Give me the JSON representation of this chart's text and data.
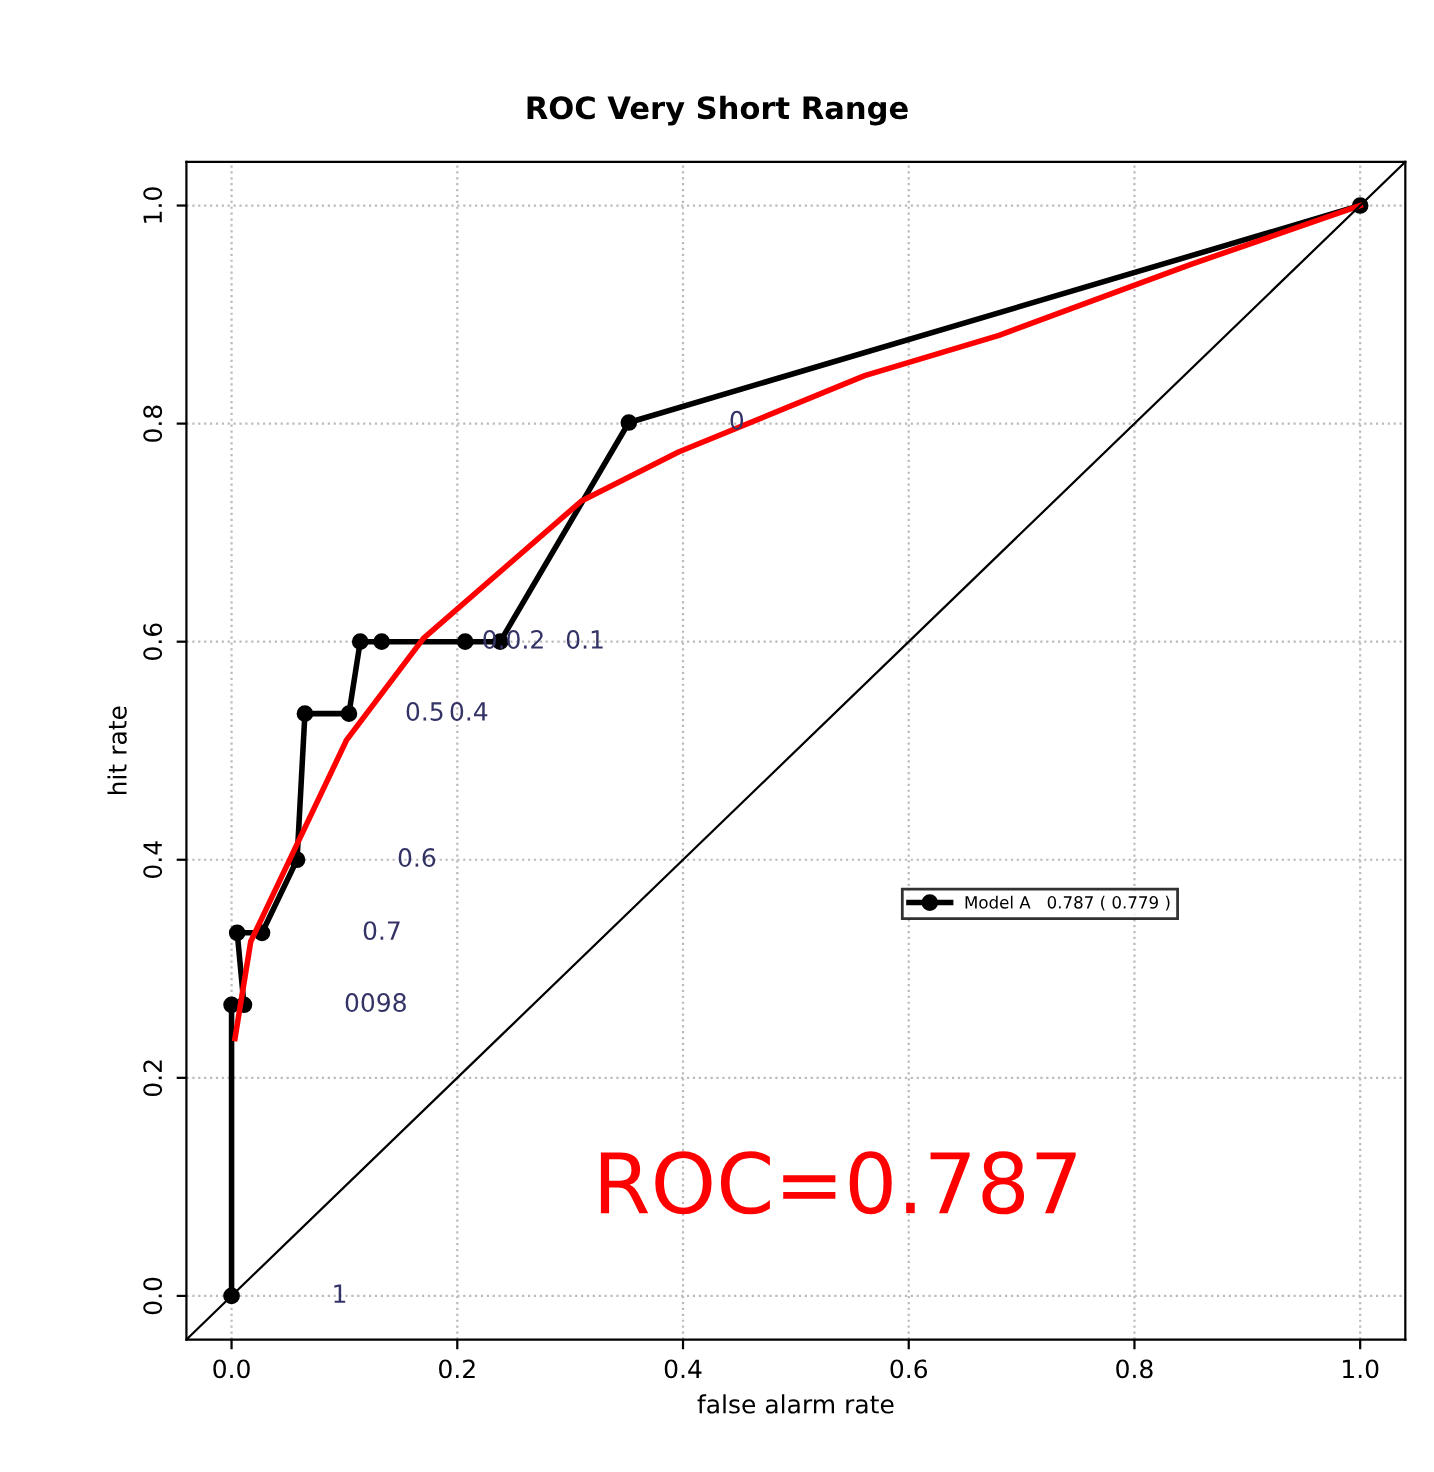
{
  "chart_data": {
    "type": "line",
    "title": "ROC Very Short Range",
    "xlabel": "false alarm rate",
    "ylabel": "hit rate",
    "xlim": [
      -0.04,
      1.04
    ],
    "ylim": [
      -0.04,
      1.04
    ],
    "xticks": [
      {
        "value": 0,
        "label": "0.0"
      },
      0.2,
      0.4,
      0.6,
      0.8,
      {
        "value": 1,
        "label": "1.0"
      }
    ],
    "yticks": [
      {
        "value": 0,
        "label": "0.0"
      },
      0.2,
      0.4,
      0.6,
      0.8,
      {
        "value": 1,
        "label": "1.0"
      }
    ],
    "grid": true,
    "legend": "right",
    "series": [
      {
        "name": "Model A   0.787 ( 0.779 )",
        "color": "#000000",
        "marker": "circle",
        "x": [
          0.0,
          0.0,
          0.011,
          0.005,
          0.027,
          0.058,
          0.065,
          0.104,
          0.114,
          0.133,
          0.207,
          0.238,
          0.352,
          1.0
        ],
        "values": [
          0.0,
          0.267,
          0.267,
          0.333,
          0.333,
          0.4,
          0.534,
          0.534,
          0.6,
          0.6,
          0.6,
          0.6,
          0.801,
          1.0
        ]
      },
      {
        "color": "#ff0000",
        "marker": "none",
        "x": [
          0.003,
          0.017,
          0.051,
          0.102,
          0.17,
          0.31,
          0.396,
          0.561,
          0.68,
          0.85,
          1.0
        ],
        "values": [
          0.236,
          0.325,
          0.399,
          0.51,
          0.603,
          0.729,
          0.774,
          0.844,
          0.881,
          0.946,
          1.0
        ]
      },
      {
        "color": "#000000",
        "marker": "none",
        "x": [
          -0.04,
          1.04
        ],
        "values": [
          -0.04,
          1.04
        ]
      }
    ],
    "annotations": [
      "0",
      "0.0.2",
      "0.1",
      "0.5",
      "0.4",
      "0.6",
      "0.7",
      "0098",
      "1",
      "ROC=0.787"
    ]
  }
}
